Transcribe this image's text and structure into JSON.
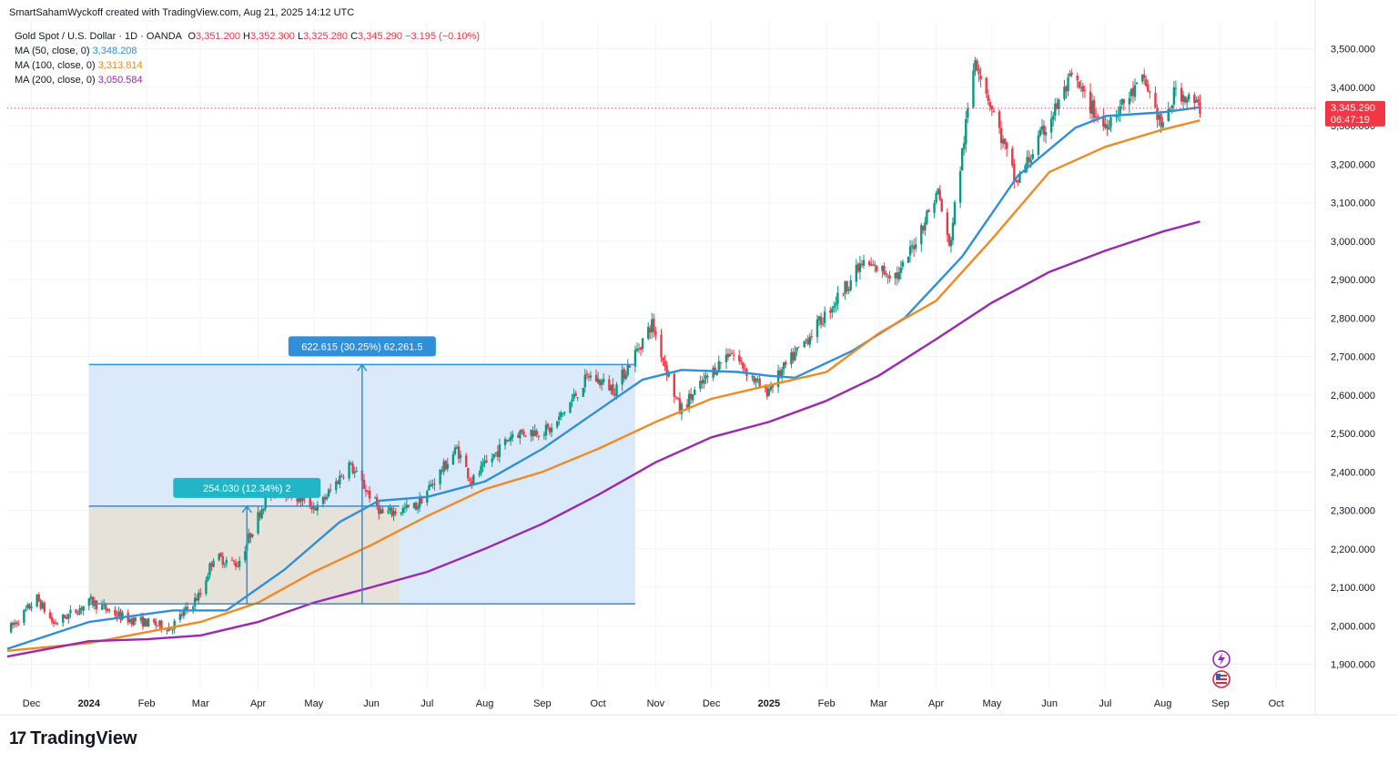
{
  "header": {
    "credit": "SmartSahamWyckoff created with TradingView.com, Aug 21, 2025 14:12 UTC"
  },
  "legend": {
    "symbol": "Gold Spot / U.S. Dollar · 1D · OANDA",
    "o_label": "O",
    "o_value": "3,351.200",
    "h_label": "H",
    "h_value": "3,352.300",
    "l_label": "L",
    "l_value": "3,325.280",
    "c_label": "C",
    "c_value": "3,345.290",
    "change": "−3.195 (−0.10%)",
    "ma50_label": "MA (50, close, 0)",
    "ma50_value": "3,348.208",
    "ma100_label": "MA (100, close, 0)",
    "ma100_value": "3,313.814",
    "ma200_label": "MA (200, close, 0)",
    "ma200_value": "3,050.584"
  },
  "price_tag": {
    "price": "3,345.290",
    "countdown": "06:47:19"
  },
  "brand": {
    "logo": "17",
    "name": "TradingView"
  },
  "icons": [
    "flash-icon",
    "us-flag-icon"
  ],
  "colors": {
    "up": "#089981",
    "down": "#f23645",
    "ma50": "#2f8fd8",
    "ma100": "#f08a24",
    "ma200": "#9c27b0",
    "range_fill": "#dbeafb",
    "range_line": "#2f8fd8",
    "measure_fill": "#e7e1d4"
  },
  "chart_data": {
    "type": "line",
    "title": "Gold Spot / U.S. Dollar · 1D · OANDA",
    "y_ticks": [
      1900,
      2000,
      2100,
      2200,
      2300,
      2400,
      2500,
      2600,
      2700,
      2800,
      2900,
      3000,
      3100,
      3200,
      3300,
      3400,
      3500
    ],
    "y_tick_labels": [
      "1,900.000",
      "2,000.000",
      "2,100.000",
      "2,200.000",
      "2,300.000",
      "2,400.000",
      "2,500.000",
      "2,600.000",
      "2,700.000",
      "2,800.000",
      "2,900.000",
      "3,000.000",
      "3,100.000",
      "3,200.000",
      "3,300.000",
      "3,400.000",
      "3,500.000"
    ],
    "ylim": [
      1835,
      3570
    ],
    "x_ticks": [
      "Dec",
      "2024",
      "Feb",
      "Mar",
      "Apr",
      "May",
      "Jun",
      "Jul",
      "Aug",
      "Sep",
      "Oct",
      "Nov",
      "Dec",
      "2025",
      "Feb",
      "Mar",
      "Apr",
      "May",
      "Jun",
      "Jul",
      "Aug",
      "Sep",
      "Oct"
    ],
    "x_tick_dates": [
      "2023-12-01",
      "2024-01-01",
      "2024-02-01",
      "2024-03-01",
      "2024-04-01",
      "2024-05-01",
      "2024-06-01",
      "2024-07-01",
      "2024-08-01",
      "2024-09-01",
      "2024-10-01",
      "2024-11-01",
      "2024-12-01",
      "2025-01-01",
      "2025-02-01",
      "2025-03-01",
      "2025-04-01",
      "2025-05-01",
      "2025-06-01",
      "2025-07-01",
      "2025-08-01",
      "2025-09-01",
      "2025-10-01"
    ],
    "xlim": [
      "2023-11-18",
      "2025-10-22"
    ],
    "grid": true,
    "current_price": 3345.29,
    "price_series": {
      "name": "Gold Spot / U.S. Dollar",
      "x": [
        "2023-11-18",
        "2023-12-04",
        "2023-12-13",
        "2024-01-02",
        "2024-01-20",
        "2024-02-14",
        "2024-03-01",
        "2024-03-08",
        "2024-03-21",
        "2024-04-05",
        "2024-04-12",
        "2024-05-03",
        "2024-05-20",
        "2024-06-07",
        "2024-06-25",
        "2024-07-17",
        "2024-07-25",
        "2024-08-16",
        "2024-09-06",
        "2024-09-26",
        "2024-10-10",
        "2024-10-30",
        "2024-11-14",
        "2024-12-11",
        "2024-12-30",
        "2025-01-30",
        "2025-02-20",
        "2025-03-12",
        "2025-04-02",
        "2025-04-08",
        "2025-04-22",
        "2025-05-14",
        "2025-06-13",
        "2025-06-30",
        "2025-07-22",
        "2025-08-01",
        "2025-08-08",
        "2025-08-21"
      ],
      "y": [
        1985,
        2071,
        2005,
        2063,
        2020,
        1995,
        2083,
        2180,
        2160,
        2330,
        2360,
        2305,
        2420,
        2290,
        2310,
        2460,
        2375,
        2500,
        2510,
        2650,
        2615,
        2785,
        2560,
        2715,
        2605,
        2800,
        2940,
        2910,
        3130,
        2980,
        3480,
        3150,
        3425,
        3300,
        3420,
        3290,
        3395,
        3345
      ]
    },
    "ma_series": [
      {
        "name": "MA (50, close, 0)",
        "x": [
          "2023-11-18",
          "2024-01-01",
          "2024-02-15",
          "2024-03-15",
          "2024-04-15",
          "2024-05-15",
          "2024-06-05",
          "2024-07-01",
          "2024-08-01",
          "2024-09-01",
          "2024-10-01",
          "2024-10-25",
          "2024-11-15",
          "2024-12-15",
          "2025-01-01",
          "2025-01-15",
          "2025-02-15",
          "2025-03-15",
          "2025-04-15",
          "2025-05-15",
          "2025-06-15",
          "2025-07-01",
          "2025-08-01",
          "2025-08-21"
        ],
        "y": [
          1940,
          2010,
          2040,
          2040,
          2145,
          2270,
          2325,
          2335,
          2375,
          2460,
          2560,
          2640,
          2665,
          2660,
          2650,
          2645,
          2715,
          2800,
          2960,
          3170,
          3295,
          3325,
          3335,
          3348
        ]
      },
      {
        "name": "MA (100, close, 0)",
        "x": [
          "2023-11-18",
          "2024-01-01",
          "2024-03-01",
          "2024-04-01",
          "2024-05-01",
          "2024-06-01",
          "2024-07-01",
          "2024-08-01",
          "2024-09-01",
          "2024-10-01",
          "2024-11-01",
          "2024-12-01",
          "2025-01-01",
          "2025-02-01",
          "2025-03-01",
          "2025-04-01",
          "2025-05-01",
          "2025-06-01",
          "2025-07-01",
          "2025-08-01",
          "2025-08-21"
        ],
        "y": [
          1935,
          1955,
          2010,
          2060,
          2140,
          2210,
          2285,
          2355,
          2400,
          2460,
          2530,
          2590,
          2625,
          2660,
          2760,
          2845,
          3005,
          3180,
          3245,
          3290,
          3314
        ]
      },
      {
        "name": "MA (200, close, 0)",
        "x": [
          "2023-11-18",
          "2024-01-01",
          "2024-02-01",
          "2024-03-01",
          "2024-04-01",
          "2024-05-01",
          "2024-06-01",
          "2024-07-01",
          "2024-08-01",
          "2024-09-01",
          "2024-10-01",
          "2024-11-01",
          "2024-12-01",
          "2025-01-01",
          "2025-02-01",
          "2025-03-01",
          "2025-04-01",
          "2025-05-01",
          "2025-06-01",
          "2025-07-01",
          "2025-08-01",
          "2025-08-21"
        ],
        "y": [
          1920,
          1960,
          1965,
          1975,
          2010,
          2060,
          2100,
          2140,
          2200,
          2265,
          2340,
          2425,
          2490,
          2530,
          2585,
          2650,
          2745,
          2840,
          2920,
          2975,
          3025,
          3051
        ]
      }
    ],
    "annotations": [
      {
        "label": "622.615 (30.25%) 62,261.5",
        "x_start": "2024-01-01",
        "x_end": "2024-10-21",
        "y_low": 2057,
        "y_high": 2679,
        "arrow_x": "2024-05-27"
      },
      {
        "label": "254.030 (12.34%) 2",
        "x_start": "2024-01-01",
        "x_end": "2024-06-16",
        "y_low": 2057,
        "y_high": 2311,
        "arrow_x": "2024-03-26"
      }
    ]
  }
}
